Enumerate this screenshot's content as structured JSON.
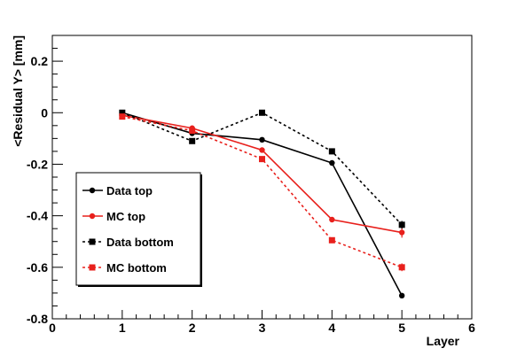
{
  "chart_data": {
    "type": "line",
    "title": "",
    "xlabel": "Layer",
    "ylabel": "<Residual Y> [mm]",
    "xlim": [
      0,
      6
    ],
    "ylim": [
      -0.8,
      0.3
    ],
    "xticks": [
      0,
      1,
      2,
      3,
      4,
      5,
      6
    ],
    "xtick_labels": [
      "0",
      "1",
      "2",
      "3",
      "4",
      "5",
      "6"
    ],
    "yticks": [
      -0.8,
      -0.6,
      -0.4,
      -0.2,
      0,
      0.2
    ],
    "ytick_labels": [
      "-0.8",
      "-0.6",
      "-0.4",
      "-0.2",
      "0",
      "0.2"
    ],
    "grid": false,
    "legend_position": "left",
    "series": [
      {
        "name": "Data top",
        "color": "#000000",
        "dash": "solid",
        "marker": "circle",
        "x": [
          1,
          2,
          3,
          4,
          5
        ],
        "y": [
          0.0,
          -0.08,
          -0.105,
          -0.195,
          -0.71
        ],
        "err": [
          0.004,
          0.004,
          0.004,
          0.006,
          0.008
        ]
      },
      {
        "name": "MC top",
        "color": "#e8201c",
        "dash": "solid",
        "marker": "circle",
        "x": [
          1,
          2,
          3,
          4,
          5
        ],
        "y": [
          -0.01,
          -0.06,
          -0.145,
          -0.415,
          -0.465
        ],
        "err": [
          0.004,
          0.004,
          0.006,
          0.008,
          0.02
        ]
      },
      {
        "name": "Data bottom",
        "color": "#000000",
        "dash": "dotted",
        "marker": "square",
        "x": [
          1,
          2,
          3,
          4,
          5
        ],
        "y": [
          0.0,
          -0.11,
          0.0,
          -0.15,
          -0.435
        ],
        "err": [
          0.004,
          0.006,
          0.004,
          0.008,
          0.015
        ]
      },
      {
        "name": "MC bottom",
        "color": "#e8201c",
        "dash": "dotted",
        "marker": "square",
        "x": [
          1,
          2,
          3,
          4,
          5
        ],
        "y": [
          -0.015,
          -0.07,
          -0.18,
          -0.495,
          -0.6
        ],
        "err": [
          0.004,
          0.004,
          0.006,
          0.008,
          0.015
        ]
      }
    ]
  }
}
